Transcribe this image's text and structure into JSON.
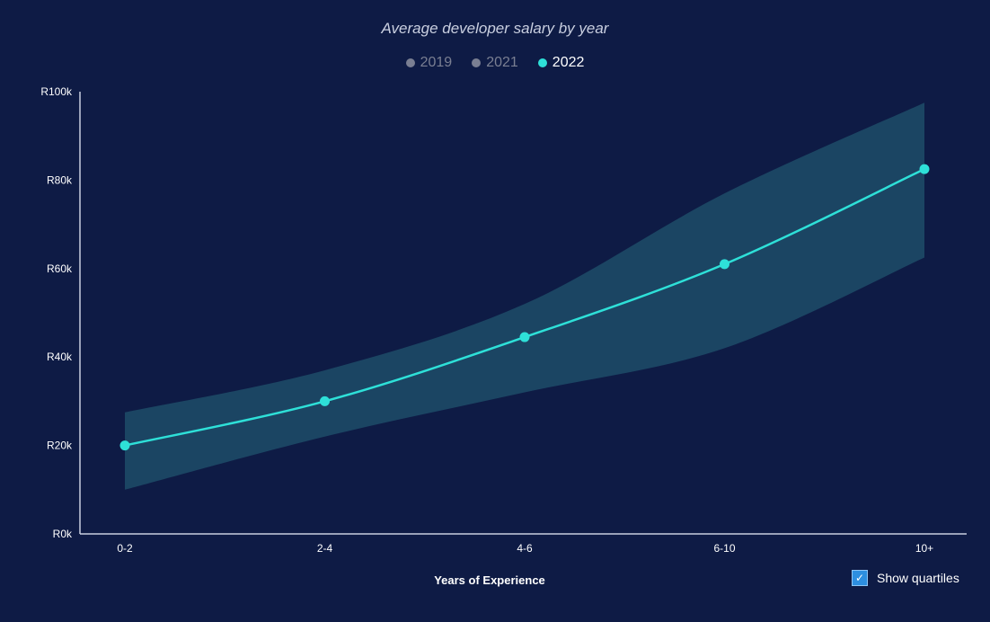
{
  "title": "Average developer salary by year",
  "legend": [
    {
      "label": "2019",
      "color": "#7a7f92",
      "active": false
    },
    {
      "label": "2021",
      "color": "#7a7f92",
      "active": false
    },
    {
      "label": "2022",
      "color": "#2ee0d8",
      "active": true
    }
  ],
  "show_quartiles": {
    "label": "Show quartiles",
    "checked": true,
    "check_glyph": "✓"
  },
  "chart_data": {
    "type": "line",
    "title": "Average developer salary by year",
    "xlabel": "Years of Experience",
    "ylabel": "",
    "categories": [
      "0-2",
      "2-4",
      "4-6",
      "6-10",
      "10+"
    ],
    "y_ticks": [
      0,
      20000,
      40000,
      60000,
      80000,
      100000
    ],
    "y_tick_labels": [
      "R0k",
      "R20k",
      "R40k",
      "R60k",
      "R80k",
      "R100k"
    ],
    "ylim": [
      0,
      100000
    ],
    "series": [
      {
        "name": "2022",
        "color": "#2ee0d8",
        "values": [
          20000,
          30000,
          44500,
          61000,
          82500
        ],
        "quartile_low": [
          10000,
          22000,
          32000,
          42000,
          62500
        ],
        "quartile_high": [
          27500,
          37000,
          52000,
          77000,
          97500
        ],
        "band_color": "#1b4563"
      }
    ],
    "grid": false,
    "legend_position": "top-center"
  }
}
